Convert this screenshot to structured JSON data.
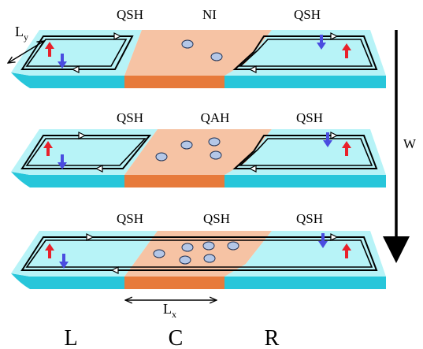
{
  "diagram": {
    "rows": [
      {
        "left_label": "QSH",
        "center_label": "NI",
        "right_label": "QSH",
        "dot_count": 2
      },
      {
        "left_label": "QSH",
        "center_label": "QAH",
        "right_label": "QSH",
        "dot_count": 4
      },
      {
        "left_label": "QSH",
        "center_label": "QSH",
        "right_label": "QSH",
        "dot_count": 6
      }
    ],
    "width_axis": {
      "symbol": "W"
    },
    "dimension_ly": {
      "symbol": "L",
      "subscript": "y"
    },
    "dimension_lx": {
      "symbol": "L",
      "subscript": "x"
    },
    "region_labels": {
      "left": "L",
      "center": "C",
      "right": "R"
    },
    "colors": {
      "qsh_top": "#b7f3f7",
      "qsh_side": "#27c6da",
      "center_top": "#f6c3a4",
      "center_side": "#e77a3b",
      "spin_up": "#e8202a",
      "spin_down": "#4a4ce0",
      "dot_fill": "#b4c7e7",
      "edge_loop": "#000000"
    }
  }
}
